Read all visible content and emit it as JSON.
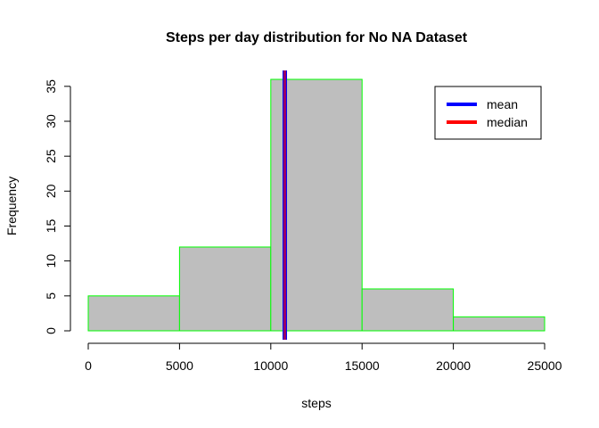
{
  "chart_data": {
    "type": "bar",
    "title": "Steps per day distribution for No NA Dataset",
    "xlabel": "steps",
    "ylabel": "Frequency",
    "bins": [
      {
        "from": 0,
        "to": 5000,
        "count": 5
      },
      {
        "from": 5000,
        "to": 10000,
        "count": 12
      },
      {
        "from": 10000,
        "to": 15000,
        "count": 36
      },
      {
        "from": 15000,
        "to": 20000,
        "count": 6
      },
      {
        "from": 20000,
        "to": 25000,
        "count": 2
      }
    ],
    "xlim": [
      0,
      25000
    ],
    "ylim": [
      0,
      36
    ],
    "x_ticks": [
      0,
      5000,
      10000,
      15000,
      20000,
      25000
    ],
    "y_ticks": [
      0,
      5,
      10,
      15,
      20,
      25,
      30,
      35
    ],
    "vlines": [
      {
        "name": "mean",
        "value": 10766,
        "color": "#0000ff"
      },
      {
        "name": "median",
        "value": 10766,
        "color": "#ff0000"
      }
    ],
    "bar_fill": "#bebebe",
    "bar_border": "#00ff00",
    "legend": {
      "position": "top-right",
      "entries": [
        {
          "label": "mean",
          "color": "#0000ff"
        },
        {
          "label": "median",
          "color": "#ff0000"
        }
      ]
    },
    "grid": false
  }
}
